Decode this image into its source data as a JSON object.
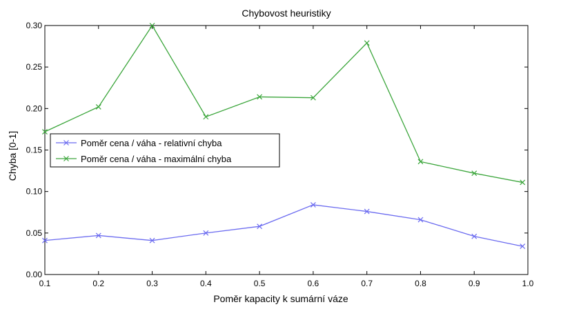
{
  "chart_data": {
    "type": "line",
    "title": "Chybovost heuristiky",
    "xlabel": "Poměr kapacity k sumární váze",
    "ylabel": "Chyba [0-1]",
    "xlim": [
      0.1,
      1.0
    ],
    "ylim": [
      0.0,
      0.3
    ],
    "xticks": [
      "0.1",
      "0.2",
      "0.3",
      "0.4",
      "0.5",
      "0.6",
      "0.7",
      "0.8",
      "0.9",
      "1.0"
    ],
    "yticks": [
      "0.00",
      "0.05",
      "0.10",
      "0.15",
      "0.20",
      "0.25",
      "0.30"
    ],
    "grid": false,
    "legend_position": "center-left",
    "x": [
      0.1,
      0.2,
      0.3,
      0.4,
      0.5,
      0.6,
      0.7,
      0.8,
      0.9,
      0.99
    ],
    "series": [
      {
        "name": "Poměr cena / váha - relativní chyba",
        "color": "#6b6bf0",
        "marker": "x",
        "values": [
          0.041,
          0.047,
          0.041,
          0.05,
          0.058,
          0.084,
          0.076,
          0.066,
          0.046,
          0.034
        ]
      },
      {
        "name": "Poměr cena / váha - maximální chyba",
        "color": "#3aa53a",
        "marker": "x",
        "values": [
          0.172,
          0.202,
          0.3,
          0.19,
          0.214,
          0.213,
          0.279,
          0.136,
          0.122,
          0.111
        ]
      }
    ]
  }
}
